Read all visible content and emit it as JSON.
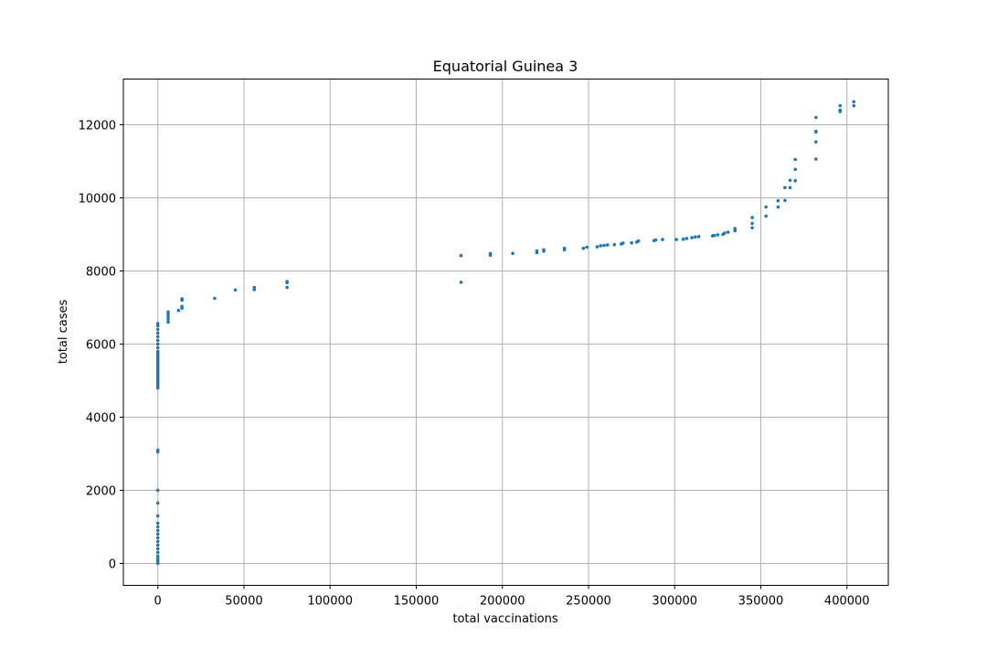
{
  "chart_data": {
    "type": "scatter",
    "title": "Equatorial Guinea 3",
    "xlabel": "total vaccinations",
    "ylabel": "total cases",
    "xlim": [
      -20000,
      424000
    ],
    "ylim": [
      -600,
      13250
    ],
    "xticks": [
      0,
      50000,
      100000,
      150000,
      200000,
      250000,
      300000,
      350000,
      400000
    ],
    "yticks": [
      0,
      2000,
      4000,
      6000,
      8000,
      10000,
      12000
    ],
    "grid": true,
    "color": "#1f77b4",
    "points": [
      [
        0,
        0
      ],
      [
        0,
        60
      ],
      [
        0,
        120
      ],
      [
        0,
        200
      ],
      [
        0,
        300
      ],
      [
        0,
        400
      ],
      [
        0,
        500
      ],
      [
        0,
        600
      ],
      [
        0,
        700
      ],
      [
        0,
        800
      ],
      [
        0,
        900
      ],
      [
        0,
        1000
      ],
      [
        0,
        1100
      ],
      [
        0,
        1300
      ],
      [
        0,
        1650
      ],
      [
        0,
        2000
      ],
      [
        0,
        3050
      ],
      [
        0,
        3100
      ],
      [
        0,
        4800
      ],
      [
        0,
        4850
      ],
      [
        0,
        4900
      ],
      [
        0,
        4950
      ],
      [
        0,
        5000
      ],
      [
        0,
        5050
      ],
      [
        0,
        5100
      ],
      [
        0,
        5150
      ],
      [
        0,
        5200
      ],
      [
        0,
        5250
      ],
      [
        0,
        5300
      ],
      [
        0,
        5350
      ],
      [
        0,
        5400
      ],
      [
        0,
        5450
      ],
      [
        0,
        5500
      ],
      [
        0,
        5550
      ],
      [
        0,
        5600
      ],
      [
        0,
        5650
      ],
      [
        0,
        5700
      ],
      [
        0,
        5750
      ],
      [
        0,
        5800
      ],
      [
        0,
        5900
      ],
      [
        0,
        6000
      ],
      [
        0,
        6100
      ],
      [
        0,
        6200
      ],
      [
        0,
        6300
      ],
      [
        0,
        6400
      ],
      [
        0,
        6500
      ],
      [
        0,
        6560
      ],
      [
        6000,
        6600
      ],
      [
        6000,
        6680
      ],
      [
        6000,
        6750
      ],
      [
        6000,
        6820
      ],
      [
        6000,
        6880
      ],
      [
        12000,
        6920
      ],
      [
        14000,
        6980
      ],
      [
        14000,
        7030
      ],
      [
        14000,
        7200
      ],
      [
        14000,
        7240
      ],
      [
        33000,
        7250
      ],
      [
        45000,
        7480
      ],
      [
        56000,
        7490
      ],
      [
        56000,
        7550
      ],
      [
        75000,
        7550
      ],
      [
        75000,
        7680
      ],
      [
        75000,
        7710
      ],
      [
        176000,
        7690
      ],
      [
        176000,
        8420
      ],
      [
        193000,
        8430
      ],
      [
        193000,
        8480
      ],
      [
        206000,
        8480
      ],
      [
        220000,
        8500
      ],
      [
        220000,
        8550
      ],
      [
        224000,
        8540
      ],
      [
        224000,
        8580
      ],
      [
        236000,
        8580
      ],
      [
        236000,
        8620
      ],
      [
        247000,
        8620
      ],
      [
        249000,
        8650
      ],
      [
        255000,
        8660
      ],
      [
        257000,
        8690
      ],
      [
        259000,
        8700
      ],
      [
        261000,
        8710
      ],
      [
        265000,
        8720
      ],
      [
        269000,
        8740
      ],
      [
        270000,
        8760
      ],
      [
        275000,
        8770
      ],
      [
        278000,
        8790
      ],
      [
        279000,
        8820
      ],
      [
        288000,
        8830
      ],
      [
        289000,
        8850
      ],
      [
        293000,
        8860
      ],
      [
        301000,
        8860
      ],
      [
        305000,
        8870
      ],
      [
        307000,
        8890
      ],
      [
        310000,
        8910
      ],
      [
        312000,
        8930
      ],
      [
        314000,
        8940
      ],
      [
        322000,
        8960
      ],
      [
        323000,
        8970
      ],
      [
        325000,
        8990
      ],
      [
        328000,
        9000
      ],
      [
        329000,
        9040
      ],
      [
        331000,
        9060
      ],
      [
        335000,
        9100
      ],
      [
        335000,
        9160
      ],
      [
        345000,
        9180
      ],
      [
        345000,
        9300
      ],
      [
        345000,
        9460
      ],
      [
        353000,
        9500
      ],
      [
        353000,
        9750
      ],
      [
        360000,
        9750
      ],
      [
        360000,
        9920
      ],
      [
        364000,
        9930
      ],
      [
        364000,
        10280
      ],
      [
        367000,
        10280
      ],
      [
        367000,
        10480
      ],
      [
        370000,
        10470
      ],
      [
        370000,
        10780
      ],
      [
        370000,
        11050
      ],
      [
        382000,
        11060
      ],
      [
        382000,
        11530
      ],
      [
        382000,
        11800
      ],
      [
        382000,
        11820
      ],
      [
        382000,
        12200
      ],
      [
        396000,
        12360
      ],
      [
        396000,
        12400
      ],
      [
        396000,
        12520
      ],
      [
        404000,
        12520
      ],
      [
        404000,
        12630
      ]
    ]
  }
}
